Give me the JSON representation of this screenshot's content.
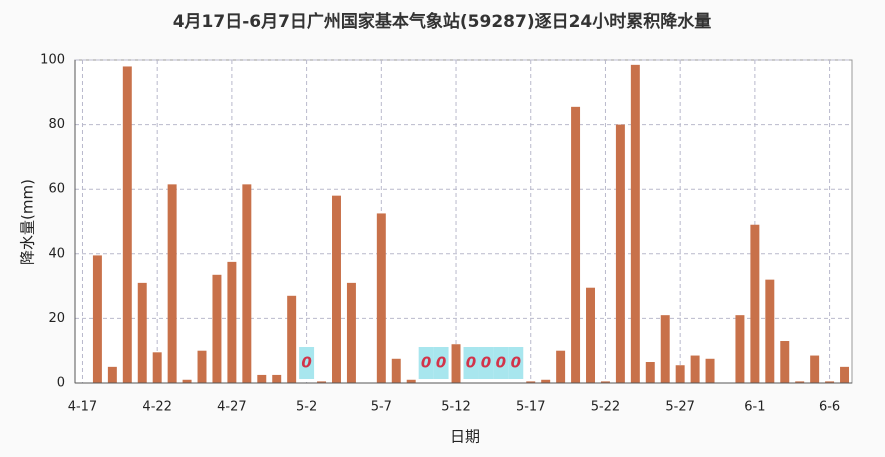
{
  "chart_data": {
    "type": "bar",
    "title": "4月17日-6月7日广州国家基本气象站(59287)逐日24小时累积降水量",
    "ylabel": "降水量(mm)",
    "xlabel": "日期",
    "categories": [
      "4-17",
      null,
      null,
      null,
      null,
      "4-22",
      null,
      null,
      null,
      null,
      "4-27",
      null,
      null,
      null,
      null,
      "5-2",
      null,
      null,
      null,
      null,
      "5-7",
      null,
      null,
      null,
      null,
      "5-12",
      null,
      null,
      null,
      null,
      "5-17",
      null,
      null,
      null,
      null,
      "5-22",
      null,
      null,
      null,
      null,
      "5-27",
      null,
      null,
      null,
      null,
      "6-1",
      null,
      null,
      null,
      null,
      "6-6",
      null
    ],
    "values": [
      0,
      39.5,
      5,
      98,
      31,
      9.5,
      61.5,
      1,
      10,
      33.5,
      37.5,
      61.5,
      2.5,
      2.5,
      27,
      0,
      0.5,
      58,
      31,
      0,
      52.5,
      7.5,
      1,
      0,
      0,
      12,
      0,
      0,
      0,
      0,
      0.5,
      1,
      10,
      85.5,
      29.5,
      0.5,
      80,
      98.5,
      6.5,
      21,
      5.5,
      8.5,
      7.5,
      0,
      21,
      49,
      32,
      13,
      0.5,
      8.5,
      0.5,
      5
    ],
    "value_labels": [
      null,
      null,
      null,
      null,
      null,
      null,
      null,
      null,
      null,
      null,
      null,
      null,
      null,
      null,
      null,
      "0",
      null,
      null,
      null,
      null,
      null,
      null,
      null,
      "0",
      "0",
      null,
      "0",
      "0",
      "0",
      "0",
      null,
      null,
      null,
      null,
      null,
      null,
      null,
      null,
      null,
      null,
      null,
      null,
      null,
      null,
      null,
      null,
      null,
      null,
      null,
      null,
      null,
      null
    ],
    "color": "#c8714a",
    "ylim": [
      0,
      100
    ],
    "yticks": [
      0,
      20,
      40,
      60,
      80,
      100
    ],
    "grid": true
  }
}
